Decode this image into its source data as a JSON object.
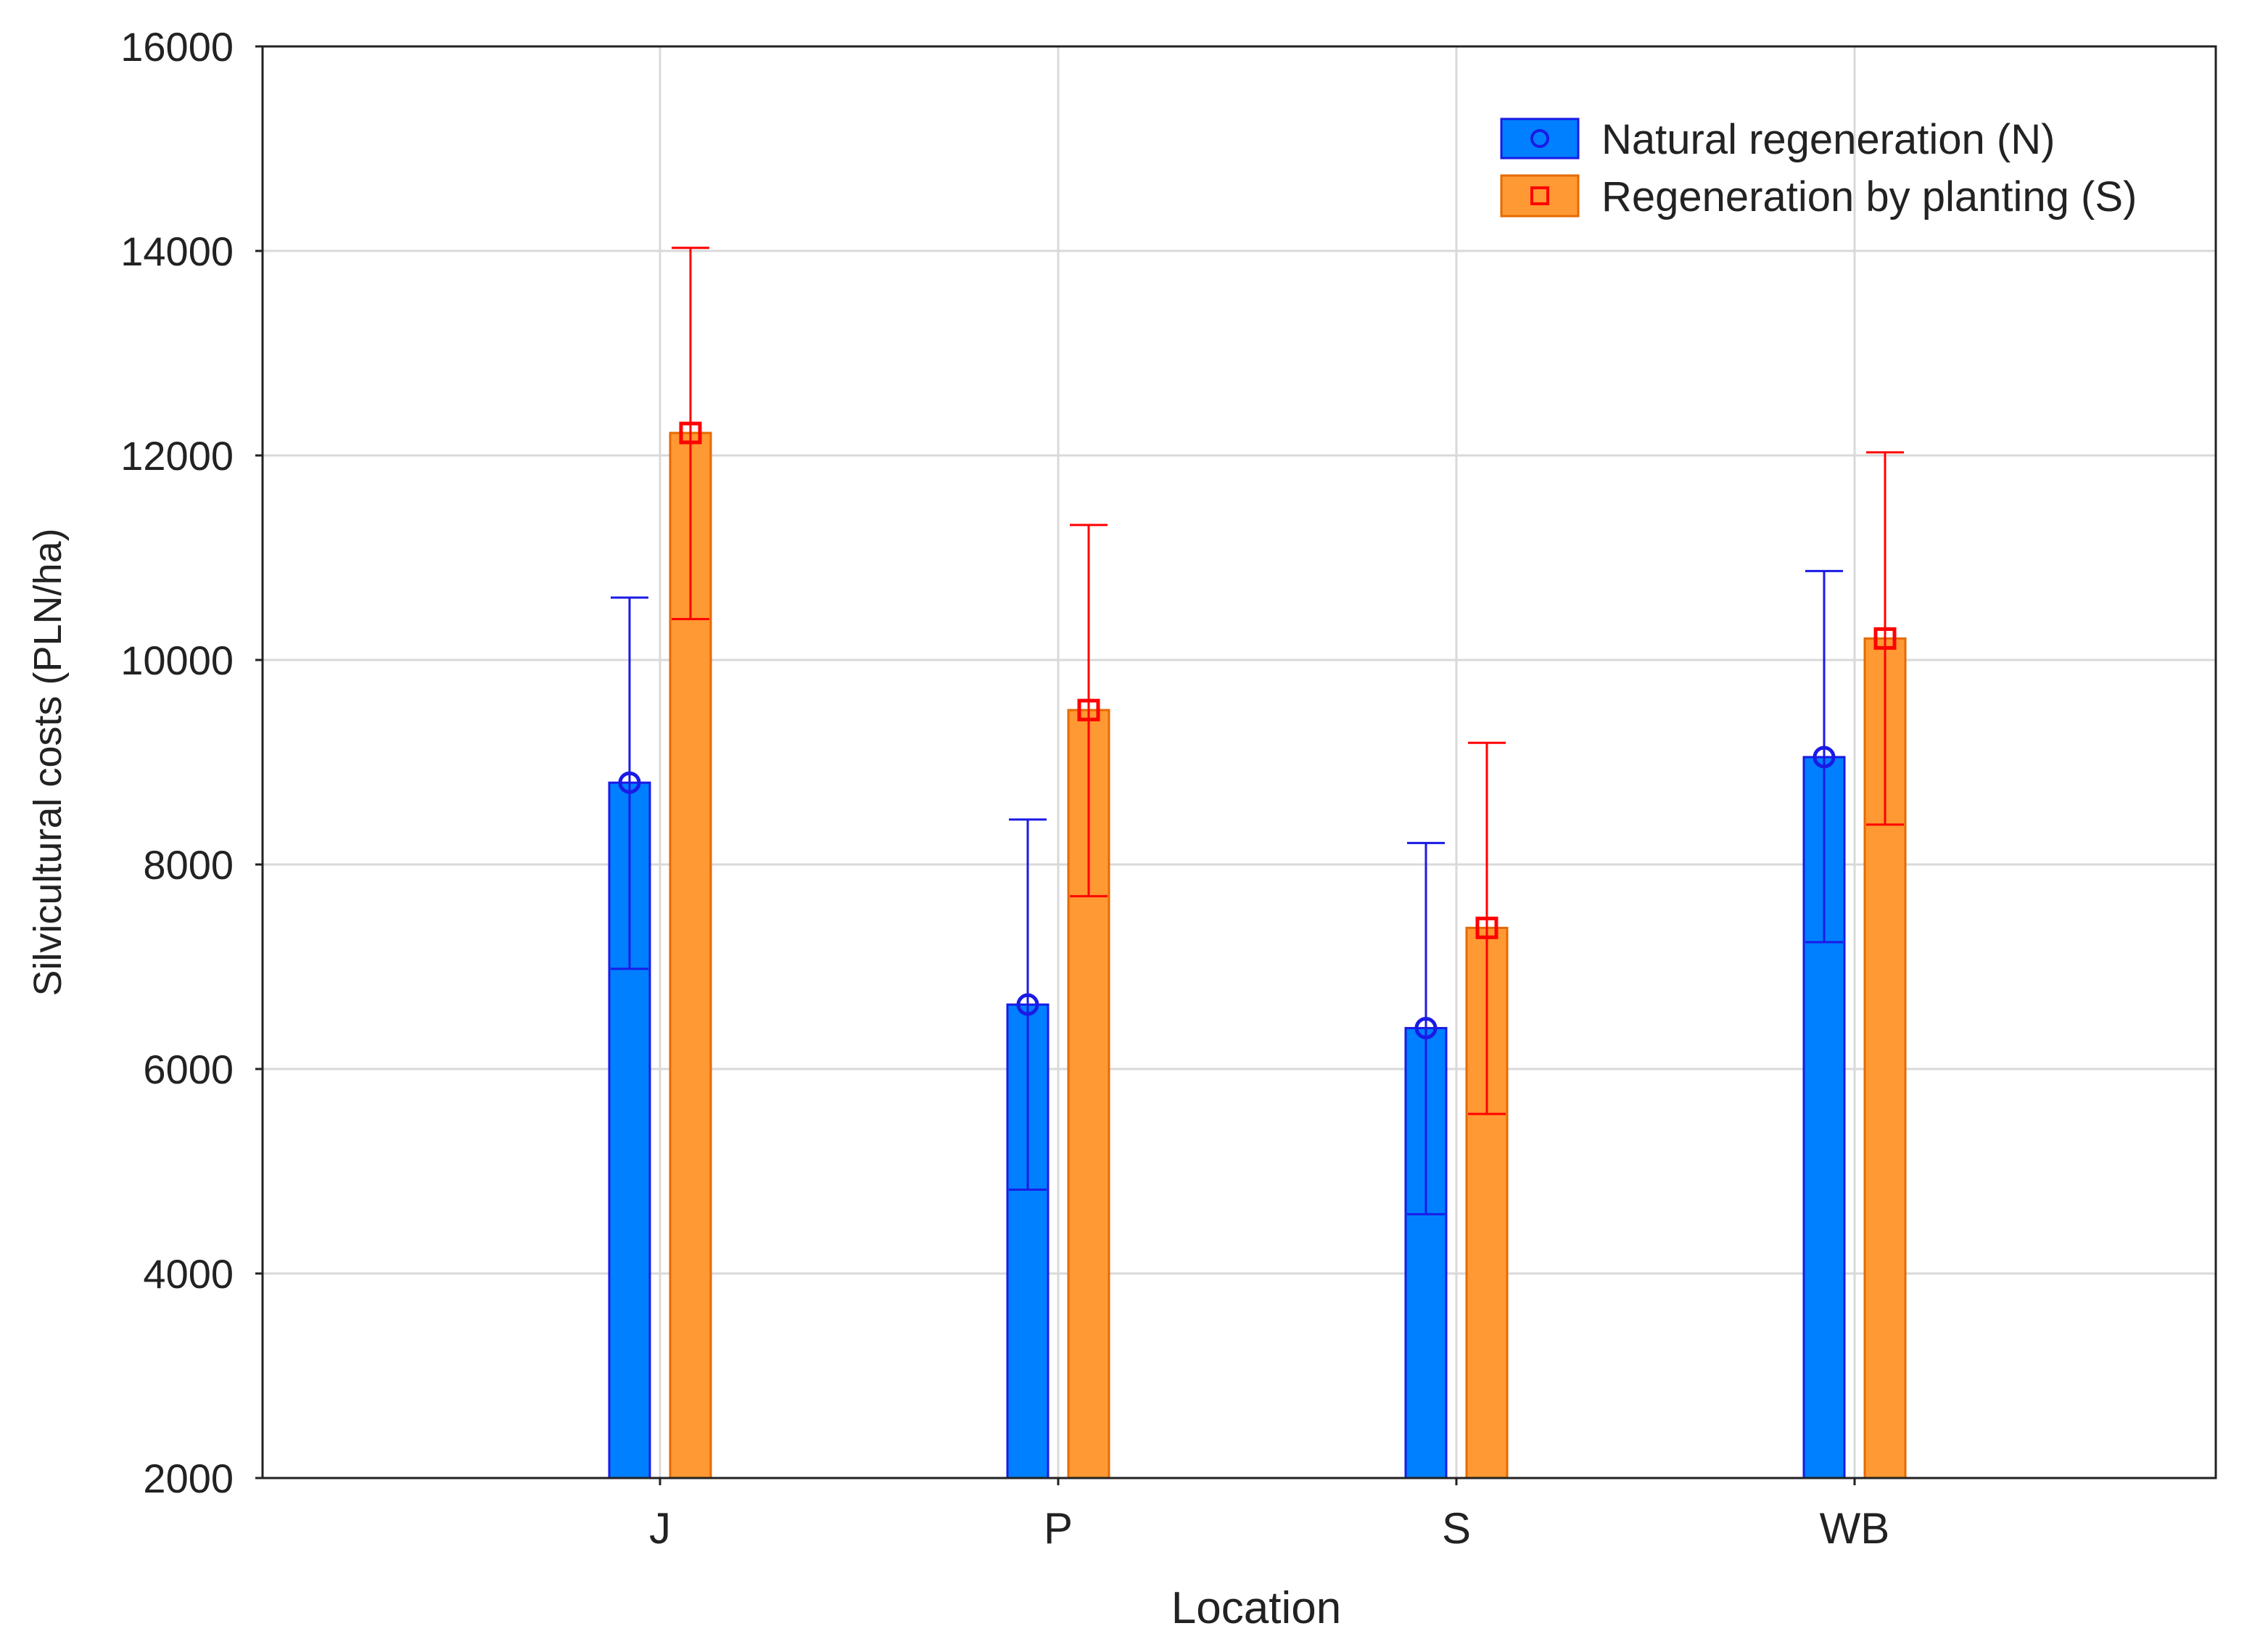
{
  "chart_data": {
    "type": "bar",
    "title": "",
    "xlabel": "Location",
    "ylabel": "Silvicultural costs (PLN/ha)",
    "categories": [
      "J",
      "P",
      "S",
      "WB"
    ],
    "ylim": [
      2000,
      16000
    ],
    "yticks": [
      2000,
      4000,
      6000,
      8000,
      10000,
      12000,
      14000,
      16000
    ],
    "ytick_labels": [
      "2000",
      "4000",
      "6000",
      "8000",
      "10000",
      "12000",
      "14000",
      "16000"
    ],
    "grid": true,
    "legend_position": "top-right",
    "series": [
      {
        "name": "Natural regeneration (N)",
        "marker": "circle",
        "bar_color": "#0080FF",
        "error_color": "#1A1AE6",
        "values": [
          8800,
          6630,
          6400,
          9050
        ],
        "error_low": [
          6980,
          4820,
          4580,
          7240
        ],
        "error_high": [
          10610,
          8440,
          8210,
          10870
        ]
      },
      {
        "name": "Regeneration by planting (S)",
        "marker": "square",
        "bar_color": "#FF9933",
        "error_color": "#FF0000",
        "values": [
          12220,
          9510,
          7380,
          10210
        ],
        "error_low": [
          10400,
          7690,
          5560,
          8390
        ],
        "error_high": [
          14030,
          11320,
          9190,
          12030
        ]
      }
    ]
  }
}
